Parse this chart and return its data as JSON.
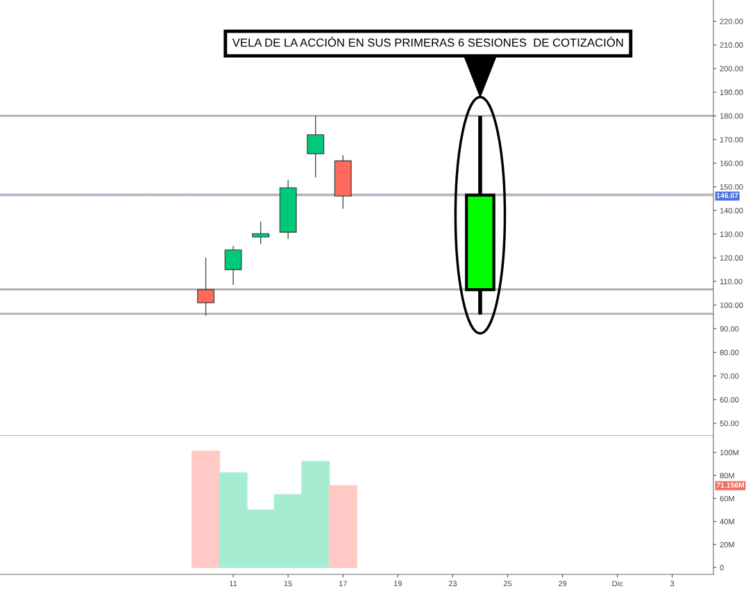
{
  "chart_data": [
    {
      "type": "candlestick",
      "tick_labels": "y",
      "grid": false,
      "categories": [
        null,
        null,
        null,
        null,
        null,
        null,
        null,
        null,
        null,
        null,
        null,
        null,
        null,
        null,
        null,
        null,
        null,
        null,
        null,
        null,
        null,
        null,
        null,
        null,
        null,
        null
      ],
      "series": [
        {
          "type": "candlestick",
          "colors": [
            null,
            null,
            null,
            null,
            null,
            null,
            null,
            "#ff6a5c",
            "#00c97a",
            "#00c97a",
            "#00c97a",
            "#00c97a",
            "#ff6a5c",
            null,
            null,
            null,
            null,
            null,
            null,
            null,
            null,
            null,
            null,
            null,
            null,
            null
          ],
          "ohlc": [
            null,
            null,
            null,
            null,
            null,
            null,
            null,
            [
              106.5,
              120,
              95.5,
              101
            ],
            [
              115,
              125,
              108.5,
              123.3
            ],
            [
              128.8,
              135.3,
              125.7,
              130.2
            ],
            [
              130.8,
              153,
              128,
              149.6
            ],
            [
              164,
              180,
              154,
              172
            ],
            [
              161,
              163.4,
              140.7,
              146.07
            ],
            null,
            null,
            null,
            null,
            null,
            null,
            null,
            null,
            null,
            null,
            null,
            null,
            null
          ]
        },
        {
          "type": "candlestick",
          "colors": [
            null,
            null,
            null,
            null,
            null,
            null,
            null,
            null,
            null,
            null,
            null,
            null,
            null,
            null,
            null,
            null,
            null,
            "#00ff00",
            null,
            null,
            null,
            null,
            null,
            null,
            null,
            null
          ],
          "ohlc": [
            null,
            null,
            null,
            null,
            null,
            null,
            null,
            null,
            null,
            null,
            null,
            null,
            null,
            null,
            null,
            null,
            null,
            [
              106.5,
              180,
              96,
              146.5
            ],
            null,
            null,
            null,
            null,
            null,
            null,
            null,
            null
          ]
        }
      ],
      "ylim": [
        44.7,
        229
      ],
      "yticks": [
        {
          "value": 50,
          "label": "50.00"
        },
        {
          "value": 60,
          "label": "60.00"
        },
        {
          "value": 70,
          "label": "70.00"
        },
        {
          "value": 80,
          "label": "80.00"
        },
        {
          "value": 90,
          "label": "90.00"
        },
        {
          "value": 100,
          "label": "100.00"
        },
        {
          "value": 110,
          "label": "110.00"
        },
        {
          "value": 120,
          "label": "120.00"
        },
        {
          "value": 130,
          "label": "130.00"
        },
        {
          "value": 140,
          "label": "140.00"
        },
        {
          "value": 150,
          "label": "150.00"
        },
        {
          "value": 160,
          "label": "160.00"
        },
        {
          "value": 170,
          "label": "170.00"
        },
        {
          "value": 180,
          "label": "180.00"
        },
        {
          "value": 190,
          "label": "190.00"
        },
        {
          "value": 200,
          "label": "200.00"
        },
        {
          "value": 210,
          "label": "210.00"
        },
        {
          "value": 220,
          "label": "220.00"
        }
      ],
      "ref_lines": [
        {
          "axis": "y",
          "value": 180,
          "color": "#a0a0a0",
          "line_style": "solid"
        },
        {
          "axis": "y",
          "value": 146.7,
          "color": "#a0a0a0",
          "line_style": "solid"
        },
        {
          "axis": "y",
          "value": 106.6,
          "color": "#a0a0a0",
          "line_style": "solid"
        },
        {
          "axis": "y",
          "value": 96.3,
          "color": "#a0a0a0",
          "line_style": "solid"
        },
        {
          "axis": "y",
          "value": 146.07,
          "label": "146.07",
          "color": "#4a6fe3",
          "line_style": "dotted"
        }
      ],
      "annotations": [
        "VELA DE LA ACCIÓN EN SUS PRIMERAS 6 SESIONES  DE COTIZACIÓN"
      ]
    },
    {
      "type": "bar",
      "grid": false,
      "categories": [
        null,
        null,
        null,
        null,
        null,
        null,
        null,
        null,
        "11",
        null,
        "15",
        null,
        "17",
        null,
        "19",
        null,
        "23",
        null,
        "25",
        null,
        "29",
        null,
        "Dic",
        null,
        "3",
        null
      ],
      "values": [
        null,
        null,
        null,
        null,
        null,
        null,
        null,
        101.2,
        82.3,
        50,
        63.3,
        92.2,
        71.156,
        null,
        null,
        null,
        null,
        null,
        null,
        null,
        null,
        null,
        null,
        null,
        null,
        null
      ],
      "colors": [
        null,
        null,
        null,
        null,
        null,
        null,
        null,
        "#ffc9c5",
        "#a6ecd0",
        "#a6ecd0",
        "#a6ecd0",
        "#a6ecd0",
        "#ffc9c5",
        null,
        null,
        null,
        null,
        null,
        null,
        null,
        null,
        null,
        null,
        null,
        null,
        null
      ],
      "ylim": [
        -6,
        114.5
      ],
      "yticks": [
        {
          "value": 0,
          "label": "0"
        },
        {
          "value": 20,
          "label": "20M"
        },
        {
          "value": 40,
          "label": "40M"
        },
        {
          "value": 60,
          "label": "60M"
        },
        {
          "value": 80,
          "label": "80M"
        },
        {
          "value": 100,
          "label": "100M"
        }
      ],
      "annotations": [
        "71.156M"
      ]
    }
  ]
}
